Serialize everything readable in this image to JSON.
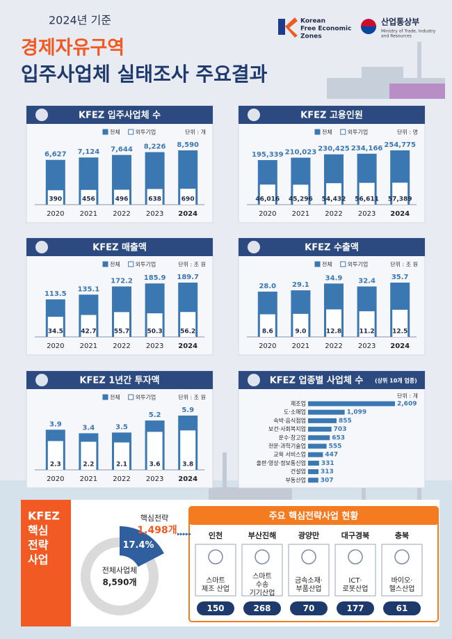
{
  "header": {
    "year_label": "2024년 기준",
    "title_line1": "경제자유구역",
    "title_line2": "입주사업체 실태조사 주요결과",
    "logo1": [
      "Korean",
      "Free Economic",
      "Zones"
    ],
    "logo2_title": "산업통상부",
    "logo2_sub": [
      "Ministry of Trade, Industry",
      "and Resources"
    ]
  },
  "chart_data": [
    {
      "type": "bar",
      "title": "KFEZ 입주사업체 수",
      "unit_label": "단위 : 개",
      "legend": "top-right",
      "categories": [
        "2020",
        "2021",
        "2022",
        "2023",
        "2024"
      ],
      "series": [
        {
          "name": "전체",
          "color": "#3b77b1",
          "values": [
            6627,
            7124,
            7644,
            8226,
            8590
          ],
          "value_labels": [
            "6,627",
            "7,124",
            "7,644",
            "8,226",
            "8,590"
          ]
        },
        {
          "name": "외투기업",
          "color": "#ffffff",
          "values": [
            390,
            456,
            496,
            638,
            690
          ]
        }
      ]
    },
    {
      "type": "bar",
      "title": "KFEZ 고용인원",
      "unit_label": "단위 : 명",
      "legend": "top-right",
      "categories": [
        "2020",
        "2021",
        "2022",
        "2023",
        "2024"
      ],
      "series": [
        {
          "name": "전체",
          "color": "#3b77b1",
          "values": [
            195339,
            210023,
            230425,
            234166,
            254775
          ],
          "value_labels": [
            "195,339",
            "210,023",
            "230,425",
            "234,166",
            "254,775"
          ]
        },
        {
          "name": "외투기업",
          "color": "#ffffff",
          "values": [
            46016,
            45296,
            54432,
            56611,
            57389
          ],
          "value_labels": [
            "46,016",
            "45,296",
            "54,432",
            "56,611",
            "57,389"
          ]
        }
      ]
    },
    {
      "type": "bar",
      "title": "KFEZ 매출액",
      "unit_label": "단위 : 조 원",
      "legend": "top-right",
      "categories": [
        "2020",
        "2021",
        "2022",
        "2023",
        "2024"
      ],
      "series": [
        {
          "name": "전체",
          "color": "#3b77b1",
          "values": [
            113.5,
            135.1,
            172.2,
            185.9,
            189.7
          ]
        },
        {
          "name": "외투기업",
          "color": "#ffffff",
          "values": [
            34.5,
            42.7,
            55.7,
            50.3,
            56.2
          ]
        }
      ]
    },
    {
      "type": "bar",
      "title": "KFEZ 수출액",
      "unit_label": "단위 : 조 원",
      "legend": "top-right",
      "categories": [
        "2020",
        "2021",
        "2022",
        "2023",
        "2024"
      ],
      "series": [
        {
          "name": "전체",
          "color": "#3b77b1",
          "values": [
            28.0,
            29.1,
            34.9,
            32.4,
            35.7
          ],
          "value_labels": [
            "28.0",
            "29.1",
            "34.9",
            "32.4",
            "35.7"
          ]
        },
        {
          "name": "외투기업",
          "color": "#ffffff",
          "values": [
            8.6,
            9.0,
            12.8,
            11.2,
            12.5
          ],
          "value_labels": [
            "8.6",
            "9.0",
            "12.8",
            "11.2",
            "12.5"
          ]
        }
      ]
    },
    {
      "type": "bar",
      "title": "KFEZ 1년간 투자액",
      "unit_label": "단위 : 조 원",
      "legend": "top-right",
      "categories": [
        "2020",
        "2021",
        "2022",
        "2023",
        "2024"
      ],
      "series": [
        {
          "name": "전체",
          "color": "#3b77b1",
          "values": [
            3.9,
            3.4,
            3.5,
            5.2,
            5.9
          ]
        },
        {
          "name": "외투기업",
          "color": "#ffffff",
          "values": [
            2.3,
            2.2,
            2.1,
            3.6,
            3.8
          ]
        }
      ]
    },
    {
      "type": "hbar",
      "title": "KFEZ 업종별 사업체 수",
      "subtitle": "(상위 10개 업종)",
      "unit_label": "단위 : 개",
      "color": "#3b77b1",
      "categories": [
        "제조업",
        "도·소매업",
        "숙박·음식점업",
        "보건·사회복지업",
        "운수·창고업",
        "전문·과학기술업",
        "교육 서비스업",
        "출판·영상·정보통신업",
        "건설업",
        "부동산업"
      ],
      "values": [
        2609,
        1099,
        855,
        703,
        653,
        555,
        447,
        331,
        313,
        307
      ],
      "value_labels": [
        "2,609",
        "1,099",
        "855",
        "703",
        "653",
        "555",
        "447",
        "331",
        "313",
        "307"
      ]
    },
    {
      "type": "donut",
      "color": "#2f5f9e",
      "values": [
        17.4
      ],
      "value_labels": [
        "17.4%"
      ],
      "highlight_title": "핵심전략",
      "highlight_value": "1,498개",
      "center_title": "전체사업체",
      "center_value": "8,590개"
    }
  ],
  "core": {
    "side_title": [
      "KFEZ",
      "핵심",
      "전략",
      "사업"
    ],
    "table": {
      "title": "주요 핵심전략사업 현황",
      "columns": [
        {
          "region": "인천",
          "industry": [
            "스마트",
            "제조 산업"
          ],
          "count": 150
        },
        {
          "region": "부산진해",
          "industry": [
            "스마트",
            "수송",
            "기기산업"
          ],
          "count": 268
        },
        {
          "region": "광양만",
          "industry": [
            "금속소재·",
            "부품산업"
          ],
          "count": 70
        },
        {
          "region": "대구경북",
          "industry": [
            "ICT·",
            "로봇산업"
          ],
          "count": 177
        },
        {
          "region": "충북",
          "industry": [
            "바이오·",
            "헬스산업"
          ],
          "count": 61
        }
      ]
    }
  }
}
